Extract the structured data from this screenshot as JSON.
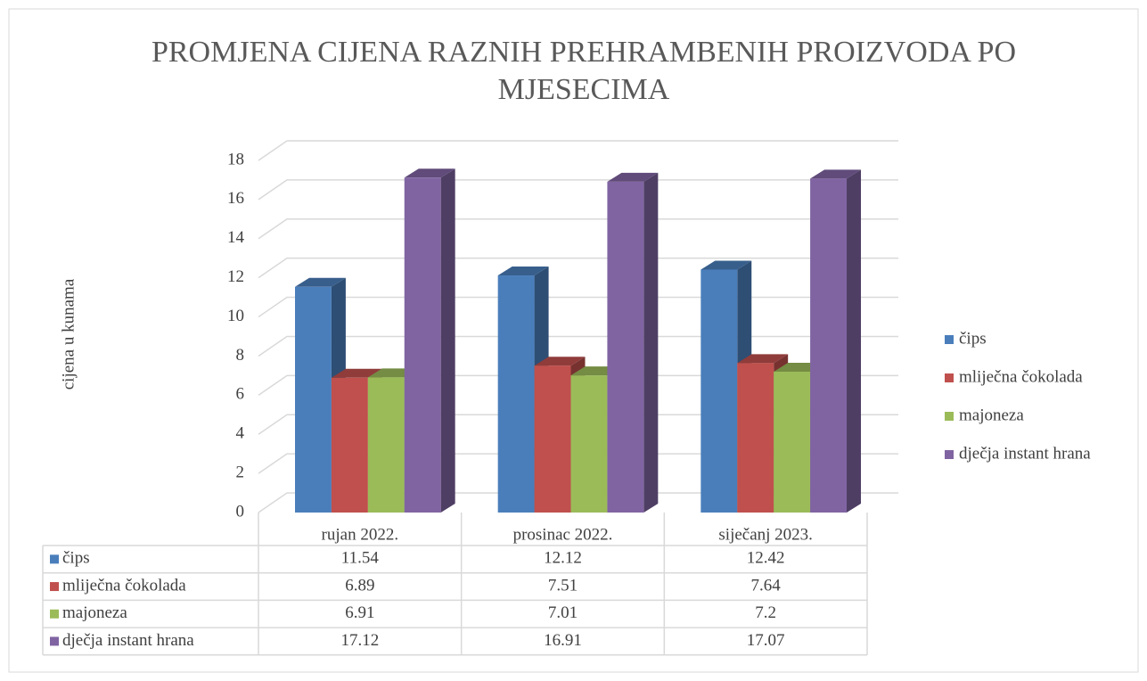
{
  "chart_data": {
    "type": "bar3d",
    "title": "PROMJENA CIJENA RAZNIH PREHRAMBENIH PROIZVODA PO MJESECIMA",
    "y_label": "cijena u kunama",
    "categories": [
      "rujan 2022.",
      "prosinac 2022.",
      "siječanj 2023."
    ],
    "series": [
      {
        "name": "čips",
        "color": "#4a7ebb",
        "values": [
          11.54,
          12.12,
          12.42
        ]
      },
      {
        "name": "mliječna čokolada",
        "color": "#c0504d",
        "values": [
          6.89,
          7.51,
          7.64
        ]
      },
      {
        "name": "majoneza",
        "color": "#9bbb59",
        "values": [
          6.91,
          7.01,
          7.2
        ]
      },
      {
        "name": "dječja instant hrana",
        "color": "#8064a2",
        "values": [
          17.12,
          16.91,
          17.07
        ]
      }
    ],
    "ylim": [
      0,
      18
    ],
    "yticks": [
      0,
      2,
      4,
      6,
      8,
      10,
      12,
      14,
      16,
      18
    ],
    "grid": true,
    "legend": "right",
    "data_table": true
  }
}
